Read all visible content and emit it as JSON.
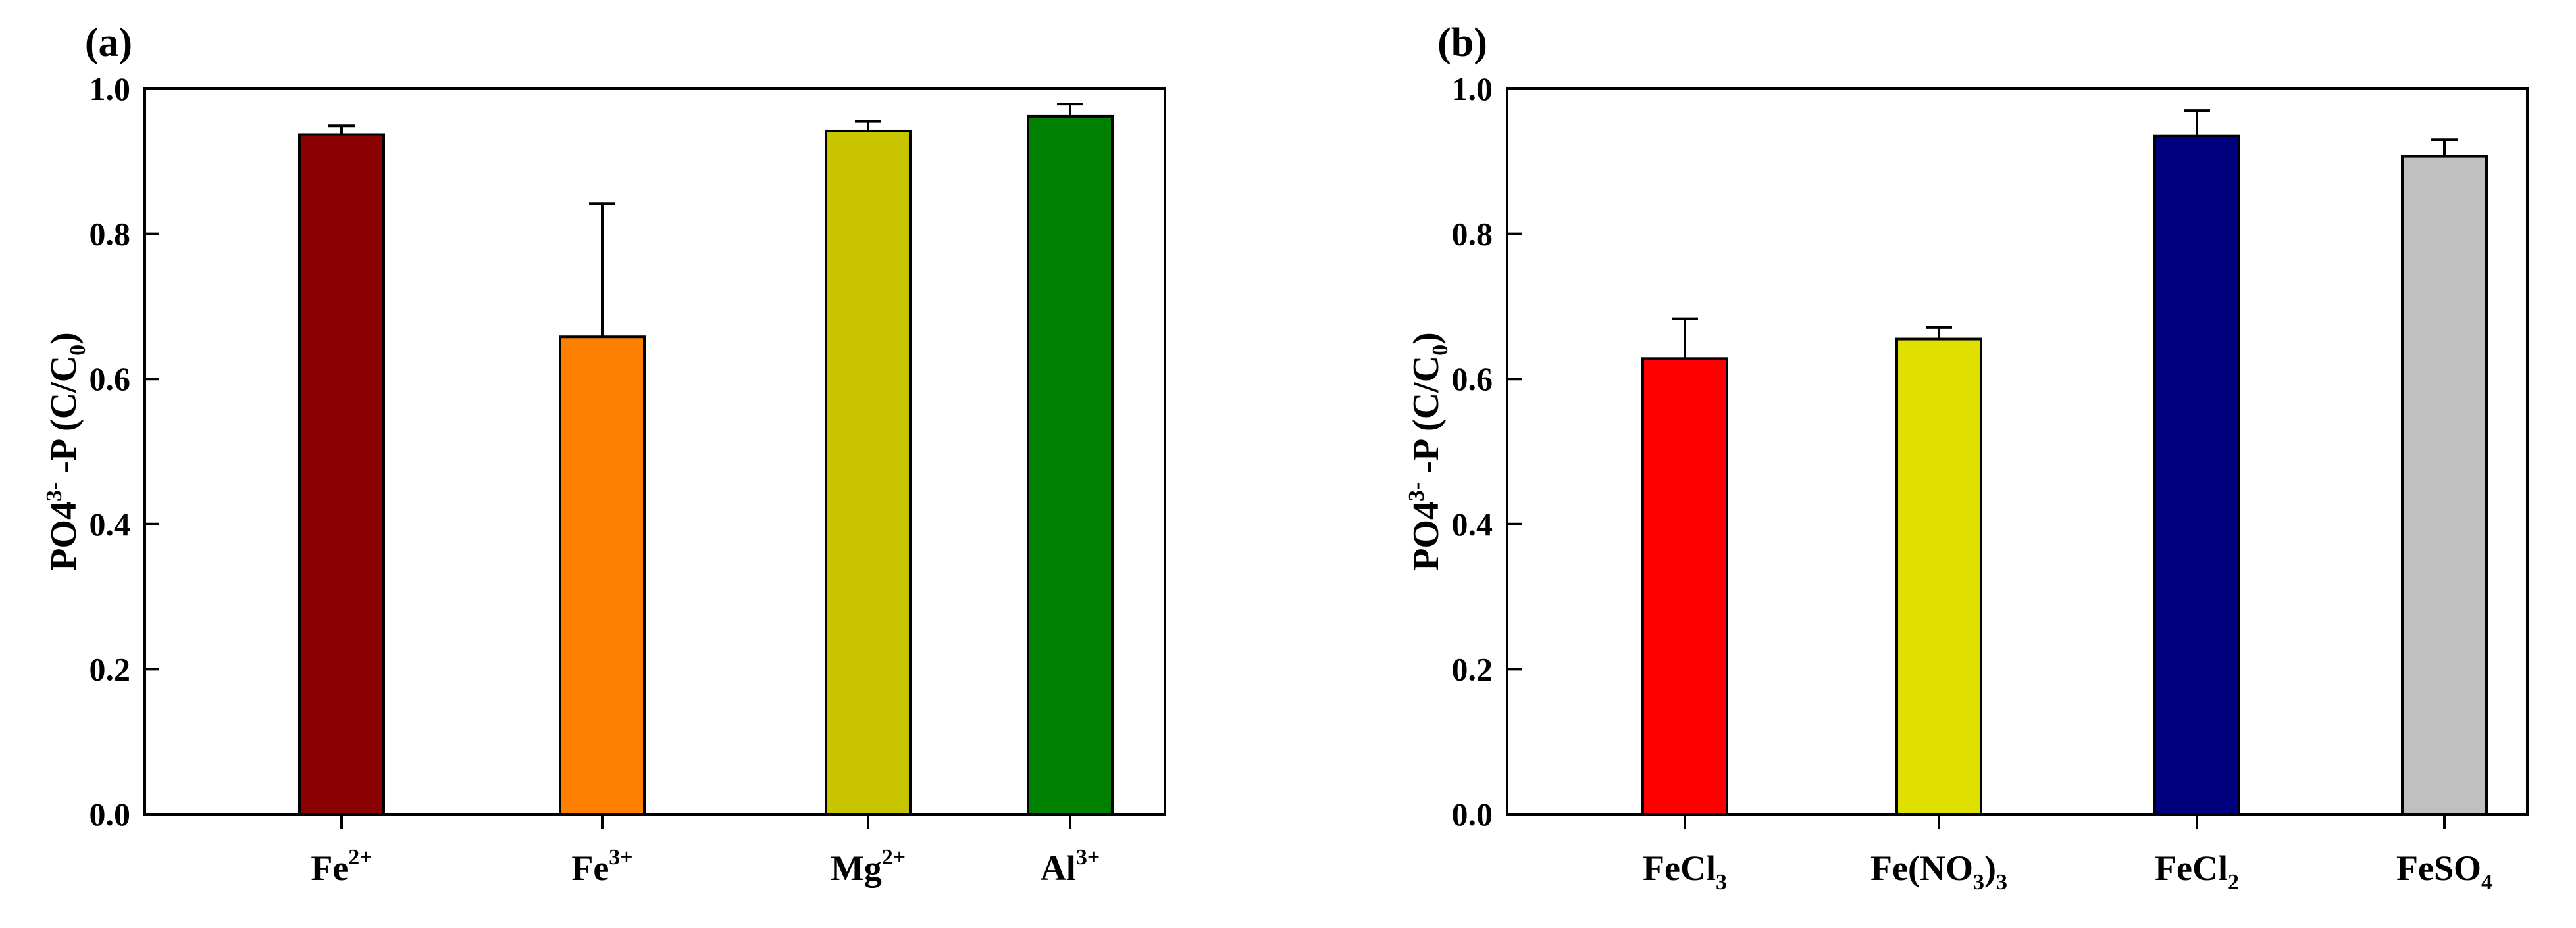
{
  "chart_data": [
    {
      "type": "bar",
      "panel_label": "(a)",
      "title": "",
      "xlabel": "",
      "ylabel": {
        "main": "PO4",
        "sup": "3-",
        "rest": " -P (C/C",
        "sub": "0",
        "end": ")"
      },
      "ylim": [
        0,
        1.0
      ],
      "yticks": [
        "0.0",
        "0.2",
        "0.4",
        "0.6",
        "0.8",
        "1.0"
      ],
      "grid": false,
      "legend": "none",
      "categories": [
        {
          "base": "Fe",
          "sup": "2+",
          "sub": ""
        },
        {
          "base": "Fe",
          "sup": "3+",
          "sub": ""
        },
        {
          "base": "Mg",
          "sup": "2+",
          "sub": ""
        },
        {
          "base": "Al",
          "sup": "3+",
          "sub": ""
        }
      ],
      "values": [
        0.937,
        0.658,
        0.942,
        0.962
      ],
      "errors": [
        0.012,
        0.184,
        0.013,
        0.017
      ],
      "colors": [
        "#8b0000",
        "#ff8000",
        "#c8c400",
        "#008000"
      ]
    },
    {
      "type": "bar",
      "panel_label": "(b)",
      "title": "",
      "xlabel": "",
      "ylabel": {
        "main": "PO4",
        "sup": "3-",
        "rest": " -P (C/C",
        "sub": "0",
        "end": ")"
      },
      "ylim": [
        0,
        1.0
      ],
      "yticks": [
        "0.0",
        "0.2",
        "0.4",
        "0.6",
        "0.8",
        "1.0"
      ],
      "grid": false,
      "legend": "none",
      "categories": [
        {
          "base": "FeCl",
          "sup": "",
          "sub": "3",
          "tail": ""
        },
        {
          "base": "Fe(NO",
          "sup": "",
          "sub": "3",
          "tail": ")",
          "sub2": "3"
        },
        {
          "base": "FeCl",
          "sup": "",
          "sub": "2",
          "tail": ""
        },
        {
          "base": "FeSO",
          "sup": "",
          "sub": "4",
          "tail": ""
        }
      ],
      "values": [
        0.628,
        0.655,
        0.935,
        0.907
      ],
      "errors": [
        0.055,
        0.016,
        0.035,
        0.023
      ],
      "colors": [
        "#ff0000",
        "#e0e000",
        "#00007f",
        "#c0c0c0"
      ]
    }
  ]
}
